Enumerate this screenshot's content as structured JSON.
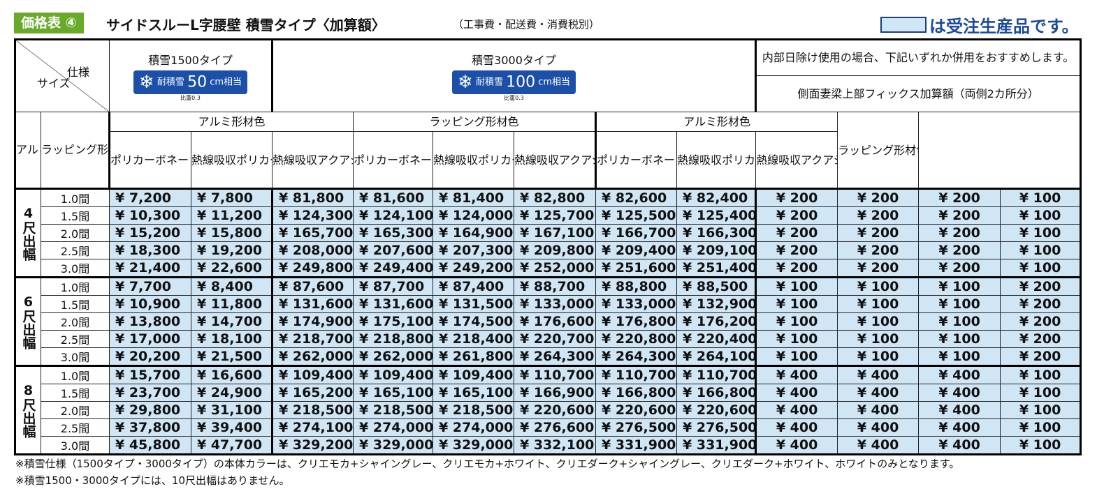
{
  "header": {
    "badge": "価格表 ④",
    "title": "サイドスルーL字腰壁 積雪タイプ〈加算額〉",
    "subtitle": "（工事費・配送費・消費税別）",
    "legend": "は受注生産品です。"
  },
  "table": {
    "corner_top": "仕様",
    "corner_bottom": "サイズ",
    "snow1500": {
      "title": "積雪1500タイプ",
      "badge_top": "耐積雪",
      "badge_value": "50",
      "badge_unit": "cm相当",
      "hikijou": "比重0.3"
    },
    "snow3000": {
      "title": "積雪3000タイプ",
      "badge_top": "耐積雪",
      "badge_value": "100",
      "badge_unit": "cm相当",
      "hikijou": "比重0.3"
    },
    "side_note": "内部日除け使用の場合、下記いずれか併用をおすすめします。",
    "side_sub": "側面妻梁上部フィックス加算額（両側2カ所分）",
    "alumi_color": "アルミ形材色",
    "wrap_color": "ラッピング形材色",
    "col_polycarbonate": "ポリカーボネート（クリア／クリアマット）使用",
    "col_heat": "熱線吸収ポリカーボネート使用",
    "col_aqua": "熱線吸収アクアシャインポリカーボネート使用",
    "col_aqua_side": "熱線吸収アクアシャインポリカーボネート使用",
    "col_wrap_side": "ラッピング形材色使用加算額（面材共通）",
    "groups": [
      {
        "label": "4尺出幅",
        "rows": [
          {
            "size": "1.0間",
            "v": [
              "¥ 7,200",
              "¥ 7,800",
              "¥ 81,800",
              "¥ 81,600",
              "¥ 81,400",
              "¥ 82,800",
              "¥ 82,600",
              "¥ 82,400",
              "¥ 200",
              "¥ 200",
              "¥ 200",
              "¥ 100"
            ]
          },
          {
            "size": "1.5間",
            "v": [
              "¥ 10,300",
              "¥ 11,200",
              "¥ 124,300",
              "¥ 124,100",
              "¥ 124,000",
              "¥ 125,700",
              "¥ 125,500",
              "¥ 125,400",
              "¥ 200",
              "¥ 200",
              "¥ 200",
              "¥ 100"
            ]
          },
          {
            "size": "2.0間",
            "v": [
              "¥ 15,200",
              "¥ 15,800",
              "¥ 165,700",
              "¥ 165,300",
              "¥ 164,900",
              "¥ 167,100",
              "¥ 166,700",
              "¥ 166,300",
              "¥ 200",
              "¥ 200",
              "¥ 200",
              "¥ 100"
            ]
          },
          {
            "size": "2.5間",
            "v": [
              "¥ 18,300",
              "¥ 19,200",
              "¥ 208,000",
              "¥ 207,600",
              "¥ 207,300",
              "¥ 209,800",
              "¥ 209,400",
              "¥ 209,100",
              "¥ 200",
              "¥ 200",
              "¥ 200",
              "¥ 100"
            ]
          },
          {
            "size": "3.0間",
            "v": [
              "¥ 21,400",
              "¥ 22,600",
              "¥ 249,800",
              "¥ 249,400",
              "¥ 249,200",
              "¥ 252,000",
              "¥ 251,600",
              "¥ 251,400",
              "¥ 200",
              "¥ 200",
              "¥ 200",
              "¥ 100"
            ]
          }
        ]
      },
      {
        "label": "6尺出幅",
        "rows": [
          {
            "size": "1.0間",
            "v": [
              "¥ 7,700",
              "¥ 8,400",
              "¥ 87,600",
              "¥ 87,700",
              "¥ 87,400",
              "¥ 88,700",
              "¥ 88,800",
              "¥ 88,500",
              "¥ 100",
              "¥ 100",
              "¥ 100",
              "¥ 200"
            ]
          },
          {
            "size": "1.5間",
            "v": [
              "¥ 10,900",
              "¥ 11,800",
              "¥ 131,600",
              "¥ 131,600",
              "¥ 131,500",
              "¥ 133,000",
              "¥ 133,000",
              "¥ 132,900",
              "¥ 100",
              "¥ 100",
              "¥ 100",
              "¥ 200"
            ]
          },
          {
            "size": "2.0間",
            "v": [
              "¥ 13,800",
              "¥ 14,700",
              "¥ 174,900",
              "¥ 175,100",
              "¥ 174,500",
              "¥ 176,600",
              "¥ 176,800",
              "¥ 176,200",
              "¥ 100",
              "¥ 100",
              "¥ 100",
              "¥ 200"
            ]
          },
          {
            "size": "2.5間",
            "v": [
              "¥ 17,000",
              "¥ 18,100",
              "¥ 218,700",
              "¥ 218,800",
              "¥ 218,400",
              "¥ 220,700",
              "¥ 220,800",
              "¥ 220,400",
              "¥ 100",
              "¥ 100",
              "¥ 100",
              "¥ 200"
            ]
          },
          {
            "size": "3.0間",
            "v": [
              "¥ 20,200",
              "¥ 21,500",
              "¥ 262,000",
              "¥ 262,000",
              "¥ 261,800",
              "¥ 264,300",
              "¥ 264,300",
              "¥ 264,100",
              "¥ 100",
              "¥ 100",
              "¥ 100",
              "¥ 200"
            ]
          }
        ]
      },
      {
        "label": "8尺出幅",
        "rows": [
          {
            "size": "1.0間",
            "v": [
              "¥ 15,700",
              "¥ 16,600",
              "¥ 109,400",
              "¥ 109,400",
              "¥ 109,400",
              "¥ 110,700",
              "¥ 110,700",
              "¥ 110,700",
              "¥ 400",
              "¥ 400",
              "¥ 400",
              "¥ 100"
            ]
          },
          {
            "size": "1.5間",
            "v": [
              "¥ 23,700",
              "¥ 24,900",
              "¥ 165,200",
              "¥ 165,100",
              "¥ 165,100",
              "¥ 166,900",
              "¥ 166,800",
              "¥ 166,800",
              "¥ 400",
              "¥ 400",
              "¥ 400",
              "¥ 100"
            ]
          },
          {
            "size": "2.0間",
            "v": [
              "¥ 29,800",
              "¥ 31,100",
              "¥ 218,500",
              "¥ 218,500",
              "¥ 218,500",
              "¥ 220,600",
              "¥ 220,600",
              "¥ 220,600",
              "¥ 400",
              "¥ 400",
              "¥ 400",
              "¥ 100"
            ]
          },
          {
            "size": "2.5間",
            "v": [
              "¥ 37,800",
              "¥ 39,400",
              "¥ 274,100",
              "¥ 274,000",
              "¥ 274,000",
              "¥ 276,600",
              "¥ 276,500",
              "¥ 276,500",
              "¥ 400",
              "¥ 400",
              "¥ 400",
              "¥ 100"
            ]
          },
          {
            "size": "3.0間",
            "v": [
              "¥ 45,800",
              "¥ 47,700",
              "¥ 329,200",
              "¥ 329,000",
              "¥ 329,000",
              "¥ 332,100",
              "¥ 331,900",
              "¥ 331,900",
              "¥ 400",
              "¥ 400",
              "¥ 400",
              "¥ 100"
            ]
          }
        ]
      }
    ]
  },
  "notes": [
    "※積雪仕様（1500タイプ・3000タイプ）の本体カラーは、クリエモカ+シャイングレー、クリエモカ+ホワイト、クリエダーク+シャイングレー、クリエダーク+ホワイト、ホワイトのみとなります。",
    "※積雪1500・3000タイプには、10尺出幅はありません。"
  ]
}
